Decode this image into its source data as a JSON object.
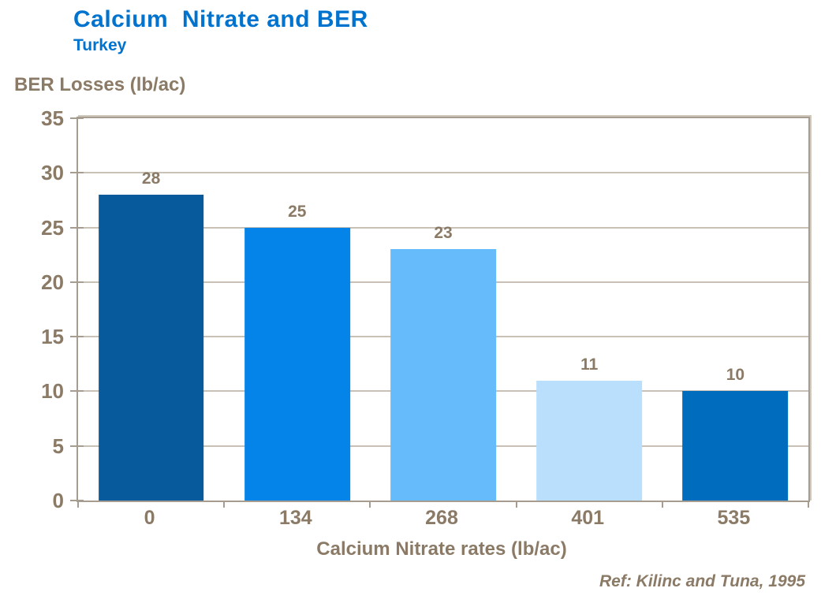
{
  "header": {
    "title": "Calcium  Nitrate and BER",
    "subtitle": "Turkey"
  },
  "reference": "Ref: Kilinc and Tuna, 1995",
  "colors": {
    "title_blue": "#0073cf",
    "axis_text_brown": "#8a7a66",
    "axis_line": "#a69d90",
    "gridline": "#c9c1b5",
    "background": "#ffffff"
  },
  "chart_data": {
    "type": "bar",
    "title": "Calcium Nitrate and BER",
    "subtitle": "Turkey",
    "categories": [
      "0",
      "134",
      "268",
      "401",
      "535"
    ],
    "values": [
      28,
      25,
      23,
      11,
      10
    ],
    "bar_colors": [
      "#075a9c",
      "#0484e8",
      "#66bbfa",
      "#b9dffc",
      "#006cbe"
    ],
    "xlabel": "Calcium Nitrate rates (lb/ac)",
    "ylabel": "BER Losses (lb/ac)",
    "ylim": [
      0,
      35
    ],
    "ytick_step": 5,
    "grid": true,
    "legend": false,
    "data_labels": true
  }
}
